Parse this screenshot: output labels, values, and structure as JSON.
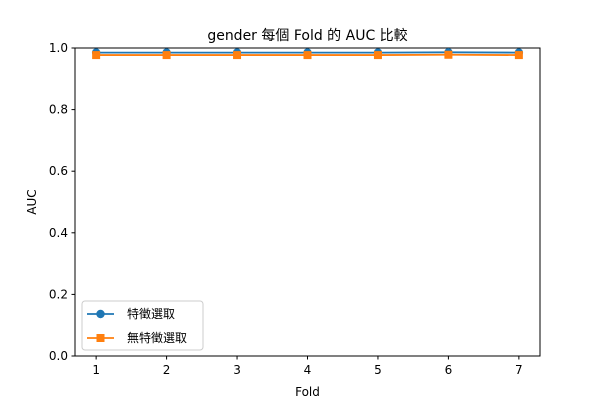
{
  "chart_data": {
    "type": "line",
    "title": "gender 每個 Fold 的 AUC 比較",
    "xlabel": "Fold",
    "ylabel": "AUC",
    "x": [
      1,
      2,
      3,
      4,
      5,
      6,
      7
    ],
    "xlim": [
      0.7,
      7.3
    ],
    "ylim": [
      0.0,
      1.0
    ],
    "yticks": [
      0.0,
      0.2,
      0.4,
      0.6,
      0.8,
      1.0
    ],
    "grid": false,
    "legend_position": "lower-left",
    "series": [
      {
        "name": "特徵選取",
        "values": [
          0.985,
          0.985,
          0.985,
          0.985,
          0.985,
          0.986,
          0.985
        ],
        "color": "#1f77b4",
        "marker": "circle"
      },
      {
        "name": "無特徵選取",
        "values": [
          0.977,
          0.977,
          0.977,
          0.977,
          0.977,
          0.978,
          0.977
        ],
        "color": "#ff7f0e",
        "marker": "square"
      }
    ]
  }
}
